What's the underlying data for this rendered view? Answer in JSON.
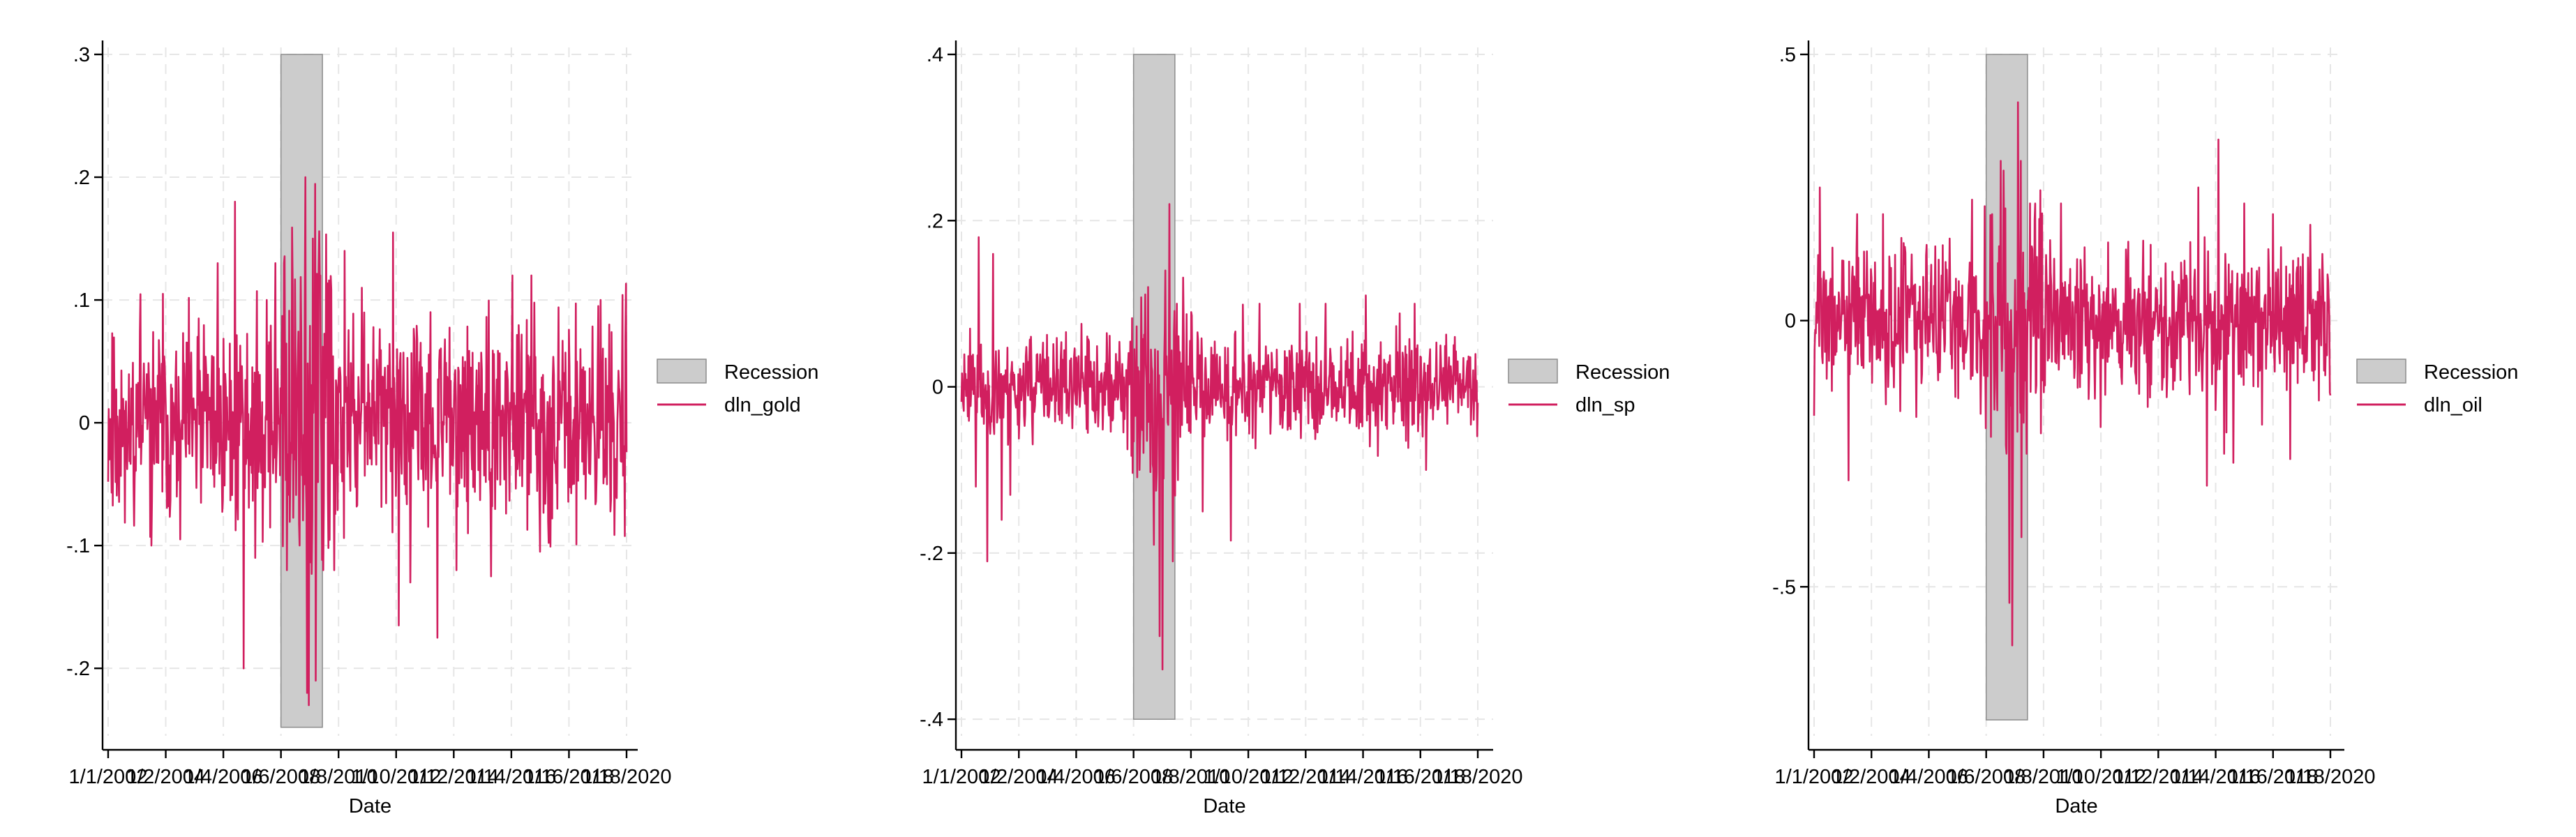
{
  "colors": {
    "series": "#d11f5f",
    "recession_fill": "#cccccc",
    "recession_stroke": "#8c8c8c",
    "grid": "#e6e6e6"
  },
  "chart_data": [
    {
      "type": "line",
      "xlabel": "Date",
      "ylabel": "",
      "x_tick_labels": [
        "1/1/2002",
        "1/2/2004",
        "1/4/2006",
        "1/6/2008",
        "1/8/2010",
        "1/10/2012",
        "1/12/2014",
        "1/14/2016",
        "1/16/2018",
        "1/18/2020"
      ],
      "x_range": [
        0,
        9
      ],
      "ylim": [
        -0.255,
        0.3
      ],
      "y_ticks": [
        0.3,
        0.2,
        0.1,
        0,
        -0.1,
        -0.2
      ],
      "y_tick_labels": [
        ".3",
        ".2",
        ".1",
        "0",
        "-.1",
        "-.2"
      ],
      "recession": {
        "name": "Recession",
        "start": 3.0,
        "end": 3.72,
        "bottom": -0.248,
        "top": 0.3
      },
      "grid": true,
      "legend_position": "right",
      "series": [
        {
          "name": "dln_gold",
          "seed": 11,
          "amp": 0.038,
          "peaks": [
            [
              3.05,
              0.13
            ],
            [
              3.1,
              -0.12
            ],
            [
              3.2,
              0.11
            ],
            [
              3.32,
              -0.1
            ],
            [
              3.42,
              0.2
            ],
            [
              3.45,
              -0.22
            ],
            [
              3.48,
              -0.23
            ],
            [
              3.55,
              0.15
            ],
            [
              3.6,
              -0.21
            ],
            [
              3.68,
              0.12
            ],
            [
              3.73,
              -0.12
            ],
            [
              2.2,
              0.18
            ],
            [
              2.35,
              -0.2
            ],
            [
              2.55,
              -0.11
            ],
            [
              2.75,
              0.1
            ],
            [
              2.9,
              0.13
            ],
            [
              4.95,
              0.155
            ],
            [
              5.05,
              -0.165
            ],
            [
              5.25,
              -0.13
            ],
            [
              5.72,
              -0.175
            ],
            [
              6.05,
              -0.12
            ],
            [
              6.65,
              -0.125
            ],
            [
              7.02,
              0.12
            ],
            [
              7.35,
              0.12
            ],
            [
              7.5,
              -0.105
            ],
            [
              8.55,
              0.1
            ],
            [
              8.7,
              0.08
            ],
            [
              0.75,
              -0.1
            ],
            [
              0.95,
              0.105
            ],
            [
              1.25,
              -0.095
            ],
            [
              1.55,
              0.07
            ],
            [
              1.9,
              0.13
            ],
            [
              4.1,
              0.14
            ],
            [
              4.4,
              0.11
            ],
            [
              6.25,
              -0.09
            ],
            [
              7.8,
              -0.07
            ],
            [
              8.2,
              0.06
            ]
          ]
        }
      ]
    },
    {
      "type": "line",
      "xlabel": "Date",
      "ylabel": "",
      "x_tick_labels": [
        "1/1/2002",
        "1/2/2004",
        "1/4/2006",
        "1/6/2008",
        "1/8/2010",
        "1/10/2012",
        "1/12/2014",
        "1/14/2016",
        "1/16/2018",
        "1/18/2020"
      ],
      "x_range": [
        0,
        9
      ],
      "ylim": [
        -0.42,
        0.4
      ],
      "y_ticks": [
        0.4,
        0.2,
        0,
        -0.2,
        -0.4
      ],
      "y_tick_labels": [
        ".4",
        ".2",
        "0",
        "-.2",
        "-.4"
      ],
      "recession": {
        "name": "Recession",
        "start": 3.0,
        "end": 3.72,
        "bottom": -0.4,
        "top": 0.4
      },
      "grid": true,
      "legend_position": "right",
      "series": [
        {
          "name": "dln_sp",
          "seed": 23,
          "amp": 0.028,
          "peaks": [
            [
              0.15,
              0.07
            ],
            [
              0.3,
              0.18
            ],
            [
              0.45,
              -0.21
            ],
            [
              0.55,
              0.16
            ],
            [
              0.7,
              -0.16
            ],
            [
              0.85,
              -0.13
            ],
            [
              0.25,
              -0.12
            ],
            [
              3.1,
              -0.1
            ],
            [
              3.25,
              0.12
            ],
            [
              3.35,
              -0.19
            ],
            [
              3.45,
              -0.3
            ],
            [
              3.5,
              -0.34
            ],
            [
              3.55,
              0.14
            ],
            [
              3.62,
              0.22
            ],
            [
              3.68,
              -0.21
            ],
            [
              3.75,
              0.1
            ],
            [
              4.0,
              0.09
            ],
            [
              4.2,
              -0.15
            ],
            [
              4.7,
              -0.185
            ],
            [
              5.2,
              0.1
            ],
            [
              5.9,
              0.1
            ],
            [
              6.35,
              0.1
            ],
            [
              7.9,
              0.1
            ],
            [
              8.1,
              -0.1
            ],
            [
              8.6,
              0.06
            ]
          ]
        }
      ]
    },
    {
      "type": "line",
      "xlabel": "Date",
      "ylabel": "",
      "x_tick_labels": [
        "1/1/2002",
        "1/2/2004",
        "1/4/2006",
        "1/6/2008",
        "1/8/2010",
        "1/10/2012",
        "1/12/2014",
        "1/14/2016",
        "1/16/2018",
        "1/18/2020"
      ],
      "x_range": [
        0,
        9
      ],
      "ylim": [
        -0.78,
        0.5
      ],
      "y_ticks": [
        0.5,
        0,
        -0.5
      ],
      "y_tick_labels": [
        ".5",
        "0",
        "-.5"
      ],
      "recession": {
        "name": "Recession",
        "start": 3.0,
        "end": 3.72,
        "bottom": -0.75,
        "top": 0.5
      },
      "grid": true,
      "legend_position": "right",
      "series": [
        {
          "name": "dln_oil",
          "seed": 37,
          "amp": 0.065,
          "peaks": [
            [
              0.1,
              0.25
            ],
            [
              0.15,
              -0.08
            ],
            [
              0.6,
              -0.3
            ],
            [
              0.75,
              0.2
            ],
            [
              1.2,
              0.2
            ],
            [
              1.5,
              -0.17
            ],
            [
              3.1,
              0.2
            ],
            [
              3.25,
              0.3
            ],
            [
              3.35,
              -0.25
            ],
            [
              3.4,
              -0.53
            ],
            [
              3.45,
              -0.61
            ],
            [
              3.55,
              0.41
            ],
            [
              3.6,
              0.3
            ],
            [
              3.7,
              -0.25
            ],
            [
              3.85,
              0.22
            ],
            [
              4.3,
              0.22
            ],
            [
              5.0,
              -0.2
            ],
            [
              6.7,
              0.25
            ],
            [
              6.85,
              -0.31
            ],
            [
              7.05,
              0.34
            ],
            [
              7.15,
              -0.25
            ],
            [
              7.5,
              0.22
            ],
            [
              8.0,
              0.2
            ],
            [
              8.3,
              -0.26
            ],
            [
              8.65,
              0.18
            ],
            [
              8.8,
              -0.15
            ]
          ]
        }
      ]
    }
  ]
}
